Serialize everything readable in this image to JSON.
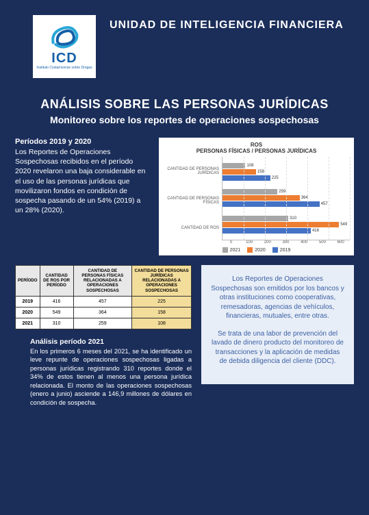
{
  "header": {
    "org_unit": "UNIDAD DE INTELIGENCIA FINANCIERA",
    "logo_acronym": "ICD",
    "logo_subtext": "Instituto Costarricense sobre Drogas"
  },
  "titles": {
    "main": "ANÁLISIS SOBRE LAS PERSONAS JURÍDICAS",
    "sub": "Monitoreo sobre los reportes de operaciones sospechosas"
  },
  "periods_block": {
    "heading": "Períodos 2019 y 2020",
    "body": "Los Reportes de Operaciones Sospechosas recibidos en el período 2020 revelaron una baja considerable en el uso de las personas jurídicas que movilizaron fondos en condición de sospecha pasando de un 54% (2019) a un 28% (2020)."
  },
  "chart": {
    "type": "grouped-horizontal-bar",
    "title_top": "ROS",
    "title_sub": "PERSONAS FÍSICAS / PERSONAS JURÍDICAS",
    "background_color": "#ffffff",
    "categories": [
      "CANTIDAD DE PERSONAS JURÍDICAS",
      "CANTIDAD DE PERSONAS FÍSICAS",
      "CANTIDAD DE ROS"
    ],
    "series": [
      {
        "name": "2021",
        "color": "#a6a6a6",
        "values": [
          108,
          259,
          310
        ]
      },
      {
        "name": "2020",
        "color": "#ed7d31",
        "values": [
          158,
          364,
          549
        ]
      },
      {
        "name": "2019",
        "color": "#4472c4",
        "values": [
          225,
          457,
          416
        ]
      }
    ],
    "x_max": 600,
    "x_ticks": [
      0,
      100,
      200,
      300,
      400,
      500,
      600
    ],
    "label_fontsize": 6,
    "val_fontsize": 6,
    "title_fontsize": 8
  },
  "table": {
    "columns": [
      "PERÍODO",
      "CANTIDAD DE ROS POR PERÍODO",
      "CANTIDAD DE PERSONAS FÍSICAS RELACIONADAS A OPERACIONES SOSPECHOSAS",
      "CANTIDAD DE PERSONAS JURÍDICAS RELACIONADAS A OPERACIONES SOSPECHOSAS"
    ],
    "highlight_col_index": 3,
    "highlight_color": "#f3dd9a",
    "rows": [
      [
        "2019",
        "416",
        "457",
        "225"
      ],
      [
        "2020",
        "549",
        "364",
        "158"
      ],
      [
        "2021",
        "310",
        "259",
        "108"
      ]
    ]
  },
  "info_box": {
    "para1": "Los Reportes de Operaciones Sospechosas son emitidos por los bancos y otras instituciones como cooperativas, remesadoras, agencias de vehículos, financieras, mutuales, entre otras.",
    "para2": "Se trata de una labor de prevención del lavado de dinero producto del monitoreo de transacciones y la aplicación de medidas de debida diligencia del cliente (DDC)."
  },
  "analysis": {
    "heading": "Análisis período 2021",
    "body": "En los primeros 6 meses del 2021, se ha identificado un leve repunte de operaciones sospechosas ligadas a personas jurídicas registrando 310 reportes donde el 34% de estos tienen al menos una persona jurídica relacionada. El monto de las operaciones sospechosas (enero a junio) asciende a 146,9 millones de dólares en condición de sospecha."
  },
  "colors": {
    "page_bg": "#1b2e5a",
    "info_bg": "#e8eef7",
    "info_text": "#3a5fa4",
    "logo_blue": "#1560a8"
  }
}
